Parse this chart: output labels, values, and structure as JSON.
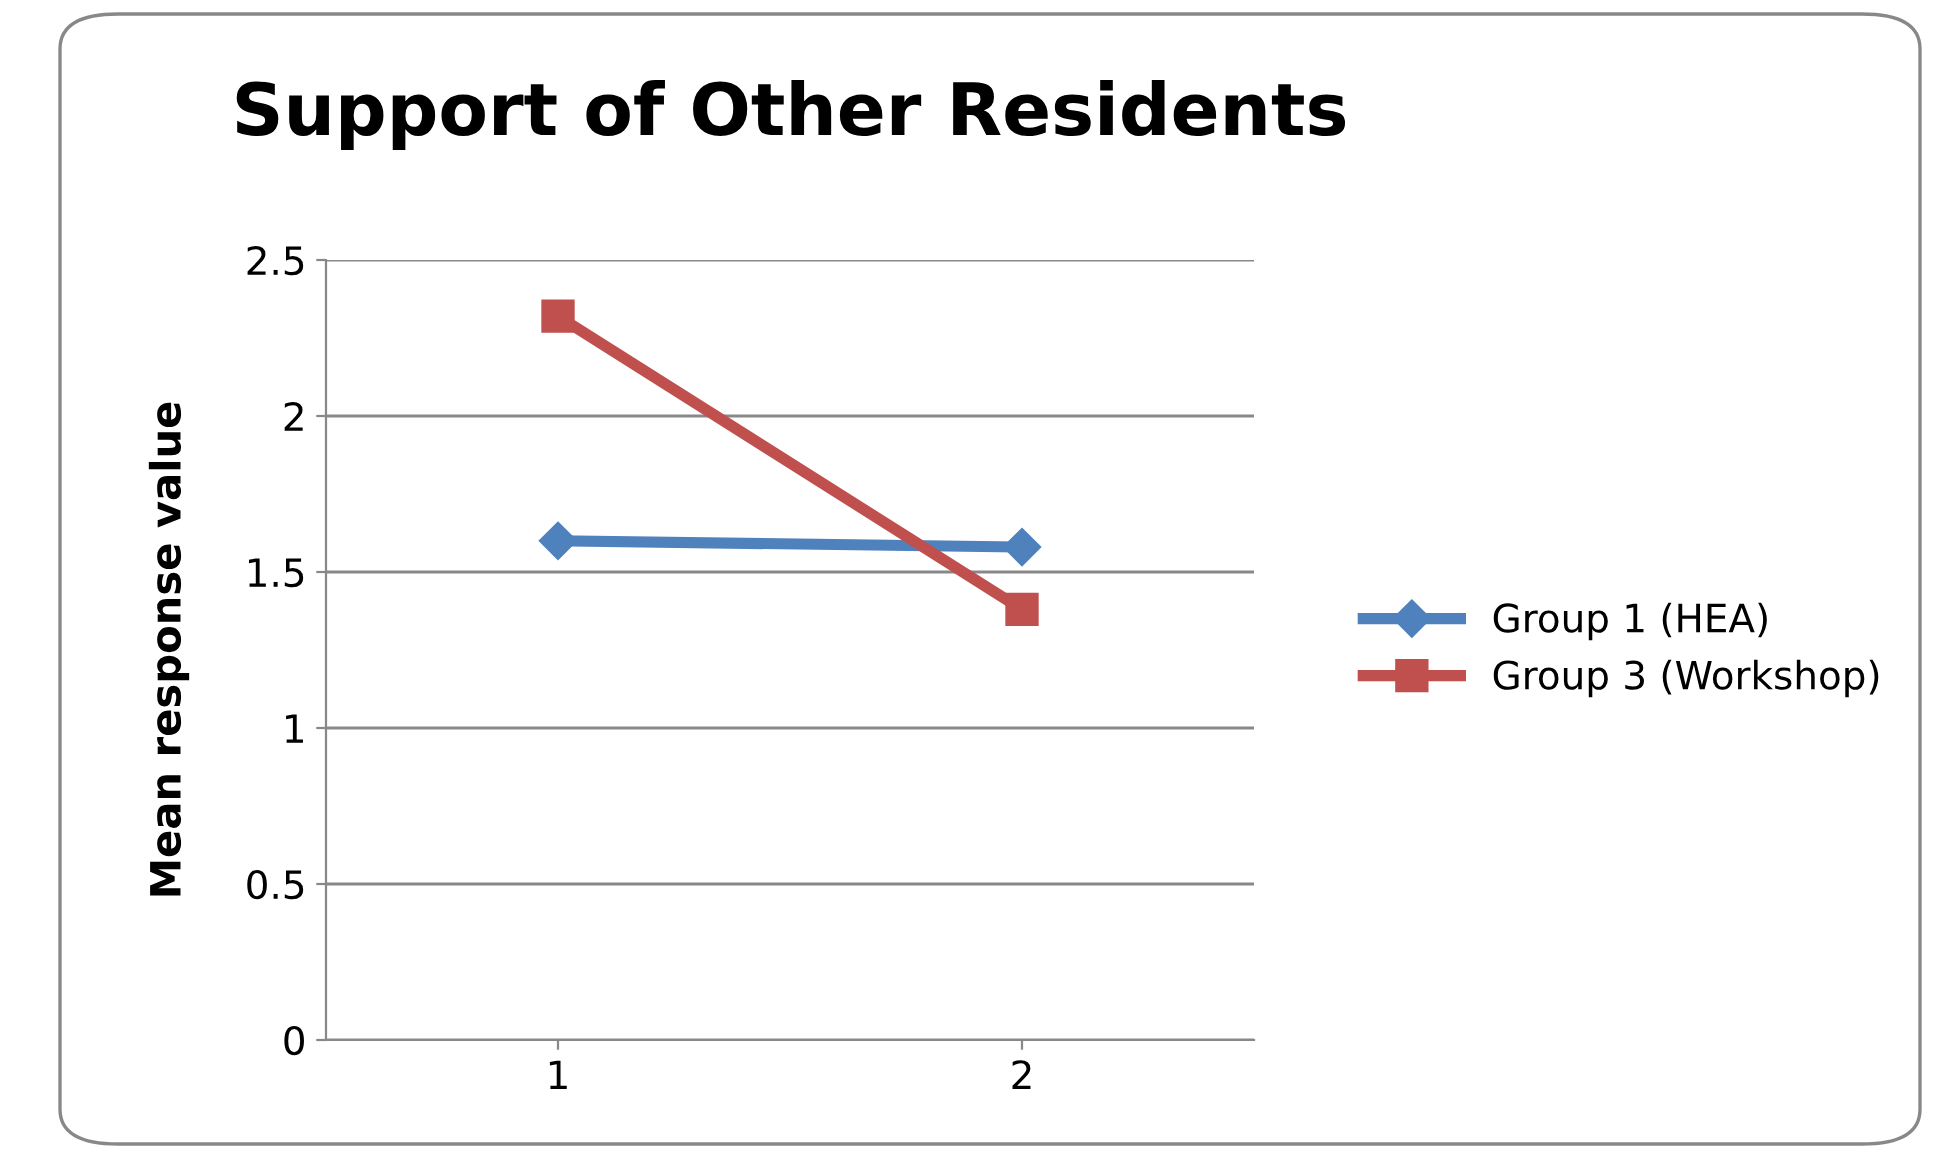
{
  "chart_data": {
    "type": "line",
    "title": "Support of Other Residents",
    "ylabel": "Mean response value",
    "categories": [
      "1",
      "2"
    ],
    "series": [
      {
        "name": "Group 1 (HEA)",
        "color": "#4f81bd",
        "marker": "diamond",
        "values": [
          1.6,
          1.58
        ]
      },
      {
        "name": "Group 3 (Workshop)",
        "color": "#c0504d",
        "marker": "square",
        "values": [
          2.32,
          1.38
        ]
      }
    ],
    "ylim": [
      0,
      2.5
    ],
    "yticks": [
      0,
      {
        "value": 0.5,
        "label": "0.5"
      },
      1,
      {
        "value": 1.5,
        "label": "1.5"
      },
      2,
      {
        "value": 2.5,
        "label": "2.5"
      }
    ],
    "grid": "y",
    "legend": "right"
  }
}
